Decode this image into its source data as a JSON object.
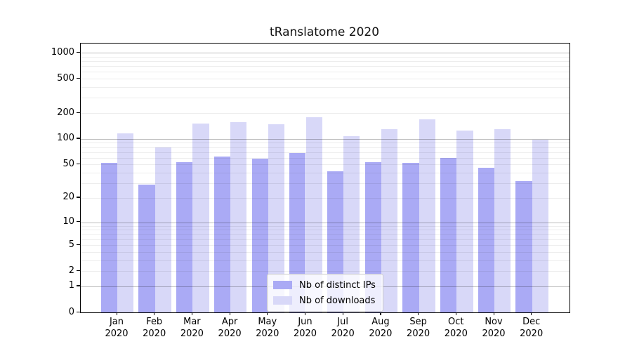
{
  "chart_data": {
    "type": "bar",
    "title": "tRanslatome 2020",
    "categories": [
      "Jan",
      "Feb",
      "Mar",
      "Apr",
      "May",
      "Jun",
      "Jul",
      "Aug",
      "Sep",
      "Oct",
      "Nov",
      "Dec"
    ],
    "year": "2020",
    "series": [
      {
        "name": "Nb of distinct IPs",
        "color": "#aaaaf5",
        "values": [
          52,
          29,
          53,
          62,
          59,
          68,
          42,
          53,
          52,
          60,
          46,
          32
        ]
      },
      {
        "name": "Nb of downloads",
        "color": "#d8d8f8",
        "values": [
          115,
          80,
          150,
          156,
          147,
          180,
          107,
          131,
          170,
          124,
          130,
          97
        ]
      }
    ],
    "y_axis": {
      "scale": "log1p",
      "ticks": [
        0,
        1,
        2,
        5,
        10,
        20,
        50,
        100,
        200,
        500,
        1000
      ],
      "max": 1300
    },
    "x_axis": {
      "label_lines": 2
    },
    "grid": {
      "major": "on",
      "minor": "on",
      "drawn_over_bars": true
    },
    "legend": {
      "position": "lower-center"
    }
  }
}
